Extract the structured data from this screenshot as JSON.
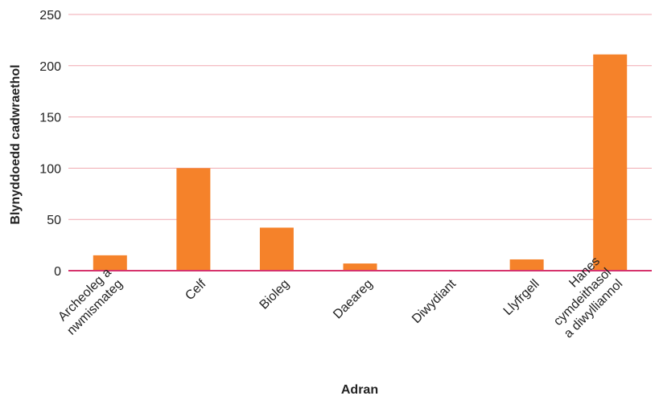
{
  "chart_data": {
    "type": "bar",
    "xlabel": "Adran",
    "ylabel": "Blynyddoedd cadwraethol",
    "ylim": [
      0,
      250
    ],
    "yticks": [
      0,
      50,
      100,
      150,
      200,
      250
    ],
    "grid": true,
    "categories": [
      [
        "Archeoleg a",
        "nwmismateg"
      ],
      [
        "Celf"
      ],
      [
        "Bioleg"
      ],
      [
        "Daeareg"
      ],
      [
        "Diwydiant"
      ],
      [
        "Llyfrgell"
      ],
      [
        "Hanes",
        "cymdeithasol",
        "a diwylliannol"
      ]
    ],
    "values": [
      15,
      100,
      42,
      7,
      0,
      11,
      211
    ],
    "colors": {
      "bar": "#f5822a",
      "grid": "#f0a8b0",
      "baseline": "#d6336c",
      "text": "#222222"
    }
  }
}
